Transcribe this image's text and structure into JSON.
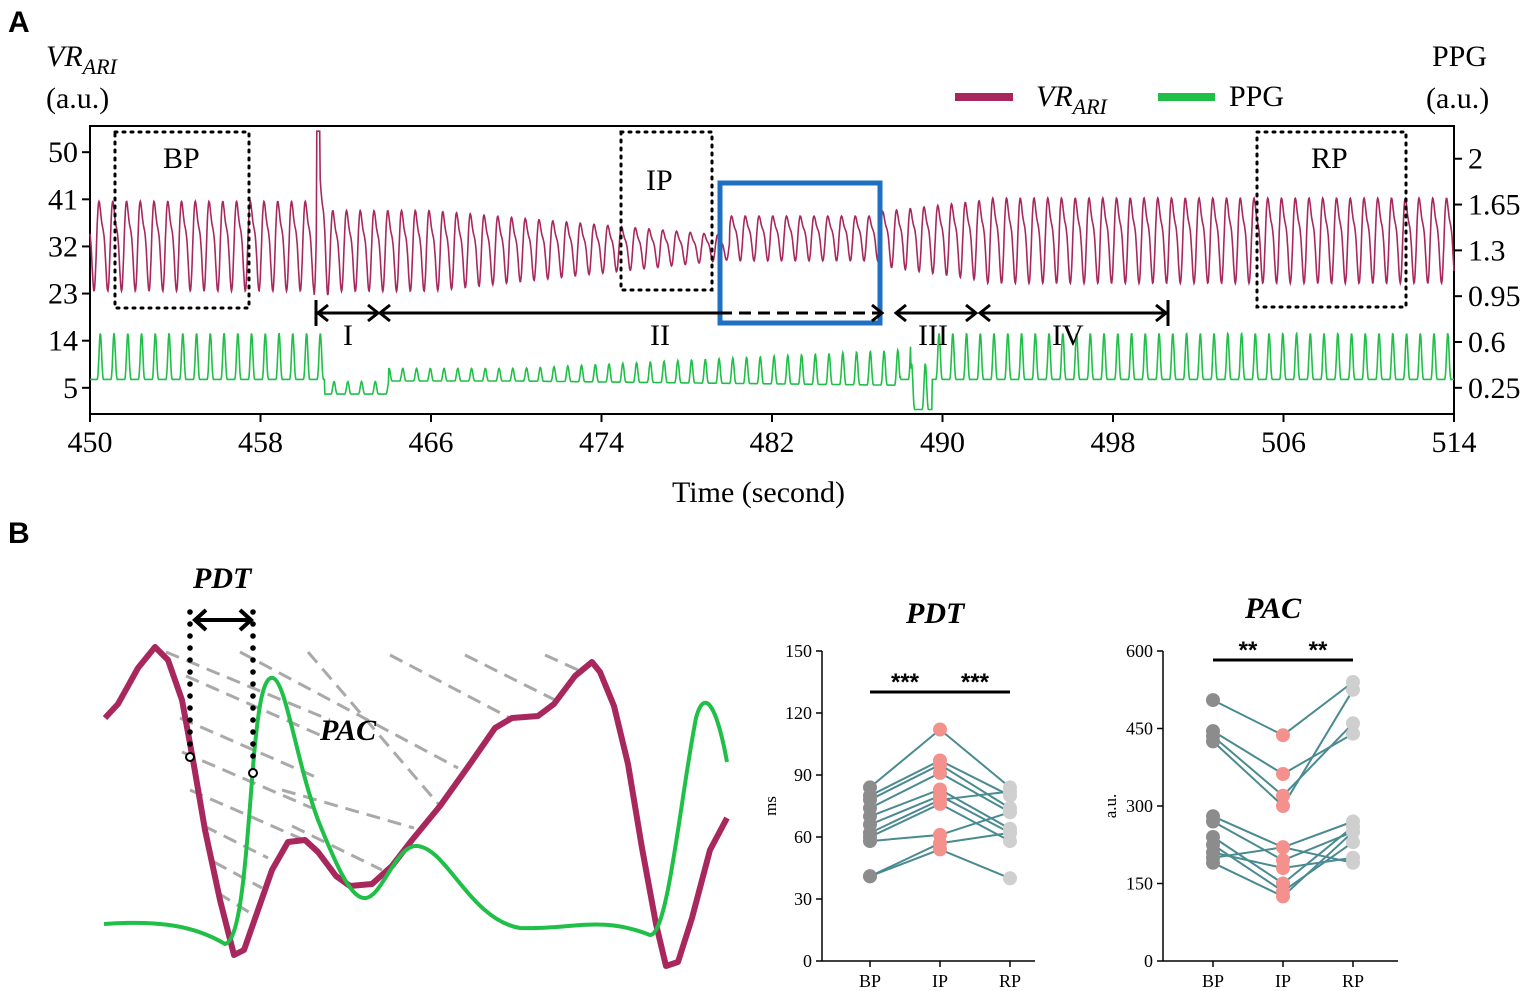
{
  "panel_a": {
    "label": "A",
    "left_axis_title": "VR",
    "left_axis_sub": "ARI",
    "left_axis_unit": "(a.u.)",
    "right_axis_title": "PPG",
    "right_axis_unit": "(a.u.)",
    "legend_vr": "VR",
    "legend_vr_sub": "ARI",
    "legend_ppg": "PPG",
    "boxes": {
      "bp": "BP",
      "ip": "IP",
      "rp": "RP"
    },
    "phases": [
      "I",
      "II",
      "III",
      "IV"
    ]
  },
  "panel_b": {
    "label": "B",
    "pdt_label": "PDT",
    "pac_label": "PAC"
  },
  "colors": {
    "vr": "#a8285e",
    "ppg": "#1fbf48",
    "highlight_box": "#1f70c1",
    "bp_dot": "#8c8c8c",
    "ip_dot": "#f4918c",
    "rp_dot": "#cfcfcf",
    "pair_line": "#4a8a91"
  },
  "chart_data": [
    {
      "type": "line",
      "title": "",
      "xlabel": "Time (second)",
      "ylabel": "VRARI (a.u.)",
      "y2label": "PPG (a.u.)",
      "xlim": [
        450,
        514
      ],
      "ylim": [
        0,
        55
      ],
      "y2lim": [
        0.05,
        2.25
      ],
      "x_ticks": [
        450,
        458,
        466,
        474,
        482,
        490,
        498,
        506,
        514
      ],
      "y_ticks": [
        5,
        14,
        23,
        32,
        41,
        50
      ],
      "y2_ticks": [
        "0.25",
        "0.6",
        "0.95",
        "1.3",
        "1.65",
        "2"
      ],
      "series": [
        {
          "name": "VRARI",
          "description": "oscillating signal ~1.5 Hz",
          "approx_range": [
            22,
            44
          ]
        },
        {
          "name": "PPG",
          "description": "pulsatile signal ~1.5 Hz",
          "approx_range": [
            0.1,
            0.7
          ]
        }
      ],
      "regions": [
        {
          "name": "BP",
          "x": [
            451.2,
            457.6
          ]
        },
        {
          "name": "IP",
          "x": [
            475.2,
            479.2
          ]
        },
        {
          "name": "RP",
          "x": [
            505.0,
            511.6
          ]
        }
      ],
      "phases": [
        {
          "name": "I",
          "x": [
            460.8,
            463.8
          ]
        },
        {
          "name": "II",
          "x": [
            463.8,
            487.6
          ]
        },
        {
          "name": "III",
          "x": [
            487.6,
            491.8
          ]
        },
        {
          "name": "IV",
          "x": [
            491.8,
            500.8
          ]
        }
      ],
      "highlight": {
        "x": [
          480.0,
          487.2
        ]
      }
    },
    {
      "type": "scatter",
      "title": "PDT",
      "xlabel": "",
      "ylabel": "ms",
      "categories": [
        "BP",
        "IP",
        "RP"
      ],
      "ylim": [
        0,
        150
      ],
      "y_ticks": [
        0,
        30,
        60,
        90,
        120,
        150
      ],
      "significance": [
        "***",
        "***"
      ],
      "subjects": [
        [
          84,
          112,
          84
        ],
        [
          80,
          97,
          80
        ],
        [
          78,
          95,
          74
        ],
        [
          74,
          91,
          72
        ],
        [
          70,
          83,
          64
        ],
        [
          66,
          80,
          62
        ],
        [
          62,
          78,
          82
        ],
        [
          60,
          76,
          58
        ],
        [
          58,
          61,
          72
        ],
        [
          41,
          57,
          62
        ],
        [
          41,
          54,
          40
        ]
      ]
    },
    {
      "type": "scatter",
      "title": "PAC",
      "xlabel": "",
      "ylabel": "a.u.",
      "categories": [
        "BP",
        "IP",
        "RP"
      ],
      "ylim": [
        0,
        600
      ],
      "y_ticks": [
        0,
        150,
        300,
        450,
        600
      ],
      "significance": [
        "**",
        "**"
      ],
      "subjects": [
        [
          505,
          437,
          540
        ],
        [
          445,
          362,
          440
        ],
        [
          435,
          320,
          460
        ],
        [
          425,
          300,
          525
        ],
        [
          280,
          220,
          270
        ],
        [
          270,
          195,
          250
        ],
        [
          240,
          150,
          260
        ],
        [
          225,
          135,
          230
        ],
        [
          210,
          180,
          200
        ],
        [
          200,
          220,
          190
        ],
        [
          190,
          125,
          250
        ]
      ]
    }
  ]
}
